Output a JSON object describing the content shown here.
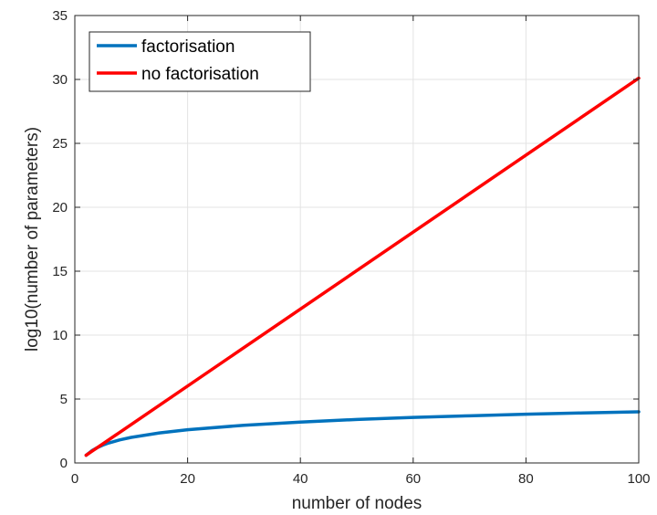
{
  "chart_data": {
    "type": "line",
    "title": "",
    "xlabel": "number of nodes",
    "ylabel": "log10(number of parameters)",
    "xlim": [
      0,
      100
    ],
    "ylim": [
      0,
      35
    ],
    "x_ticks": [
      0,
      20,
      40,
      60,
      80,
      100
    ],
    "y_ticks": [
      0,
      5,
      10,
      15,
      20,
      25,
      30,
      35
    ],
    "grid": true,
    "legend_position": "top-left",
    "series": [
      {
        "name": "factorisation",
        "color": "#0072BD",
        "x": [
          2,
          3,
          4,
          5,
          6,
          8,
          10,
          15,
          20,
          30,
          40,
          50,
          60,
          70,
          80,
          90,
          100
        ],
        "y": [
          0.6,
          0.95,
          1.2,
          1.4,
          1.56,
          1.81,
          2.0,
          2.35,
          2.6,
          2.95,
          3.2,
          3.4,
          3.56,
          3.69,
          3.81,
          3.91,
          4.0
        ]
      },
      {
        "name": "no factorisation",
        "color": "#FF0000",
        "x": [
          2,
          100
        ],
        "y": [
          0.6,
          30.1
        ]
      }
    ]
  }
}
